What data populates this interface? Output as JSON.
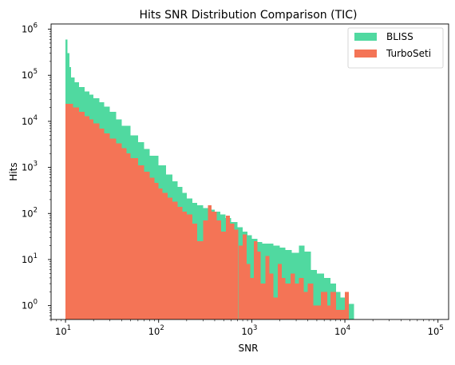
{
  "chart_data": {
    "type": "histogram",
    "title": "Hits SNR Distribution Comparison (TIC)",
    "xlabel": "SNR",
    "ylabel": "Hits",
    "xscale": "log",
    "yscale": "log",
    "xlim": [
      7,
      130000
    ],
    "ylim": [
      0.5,
      1300000
    ],
    "x_ticks": [
      {
        "value": 10,
        "base": "10",
        "exp": "1"
      },
      {
        "value": 100,
        "base": "10",
        "exp": "2"
      },
      {
        "value": 1000,
        "base": "10",
        "exp": "3"
      },
      {
        "value": 10000,
        "base": "10",
        "exp": "4"
      },
      {
        "value": 100000,
        "base": "10",
        "exp": "5"
      }
    ],
    "y_ticks": [
      {
        "value": 1,
        "base": "10",
        "exp": "0"
      },
      {
        "value": 10,
        "base": "10",
        "exp": "1"
      },
      {
        "value": 100,
        "base": "10",
        "exp": "2"
      },
      {
        "value": 1000,
        "base": "10",
        "exp": "3"
      },
      {
        "value": 10000,
        "base": "10",
        "exp": "4"
      },
      {
        "value": 100000,
        "base": "10",
        "exp": "5"
      },
      {
        "value": 1000000,
        "base": "10",
        "exp": "6"
      }
    ],
    "legend_position": "top-right",
    "grid": false,
    "series": [
      {
        "name": "BLISS",
        "color": "#50d9a0",
        "bins": [
          [
            10,
            600000
          ],
          [
            10.5,
            300000
          ],
          [
            11,
            150000
          ],
          [
            11.5,
            90000
          ],
          [
            12.5,
            70000
          ],
          [
            14,
            55000
          ],
          [
            16,
            45000
          ],
          [
            18,
            38000
          ],
          [
            20,
            32000
          ],
          [
            23,
            26000
          ],
          [
            26,
            21000
          ],
          [
            30,
            16000
          ],
          [
            35,
            11000
          ],
          [
            40,
            8000
          ],
          [
            50,
            5000
          ],
          [
            60,
            3500
          ],
          [
            70,
            2500
          ],
          [
            80,
            1800
          ],
          [
            100,
            1100
          ],
          [
            120,
            700
          ],
          [
            140,
            500
          ],
          [
            160,
            380
          ],
          [
            180,
            280
          ],
          [
            200,
            210
          ],
          [
            230,
            170
          ],
          [
            260,
            150
          ],
          [
            300,
            130
          ],
          [
            340,
            120
          ],
          [
            400,
            110
          ],
          [
            460,
            95
          ],
          [
            520,
            80
          ],
          [
            600,
            65
          ],
          [
            700,
            50
          ],
          [
            800,
            40
          ],
          [
            900,
            34
          ],
          [
            1000,
            28
          ],
          [
            1150,
            24
          ],
          [
            1300,
            22
          ],
          [
            1500,
            22
          ],
          [
            1700,
            20
          ],
          [
            2000,
            18
          ],
          [
            2300,
            16
          ],
          [
            2700,
            14
          ],
          [
            3200,
            20
          ],
          [
            3700,
            15
          ],
          [
            4300,
            6
          ],
          [
            5000,
            5
          ],
          [
            6000,
            4
          ],
          [
            7000,
            3
          ],
          [
            8000,
            2
          ],
          [
            9000,
            1.5
          ],
          [
            10000,
            1.1
          ],
          [
            11000,
            1.1
          ],
          [
            12500,
            0
          ]
        ]
      },
      {
        "name": "TurboSeti",
        "color": "#f47456",
        "bins": [
          [
            10,
            24000
          ],
          [
            12,
            20000
          ],
          [
            14,
            16000
          ],
          [
            16,
            13000
          ],
          [
            18,
            11000
          ],
          [
            20,
            9000
          ],
          [
            23,
            7000
          ],
          [
            26,
            5500
          ],
          [
            30,
            4200
          ],
          [
            35,
            3300
          ],
          [
            40,
            2600
          ],
          [
            45,
            2000
          ],
          [
            50,
            1600
          ],
          [
            60,
            1100
          ],
          [
            70,
            800
          ],
          [
            80,
            600
          ],
          [
            90,
            460
          ],
          [
            100,
            350
          ],
          [
            110,
            280
          ],
          [
            125,
            220
          ],
          [
            140,
            180
          ],
          [
            160,
            140
          ],
          [
            180,
            110
          ],
          [
            200,
            95
          ],
          [
            230,
            60
          ],
          [
            260,
            25
          ],
          [
            300,
            70
          ],
          [
            340,
            150
          ],
          [
            370,
            110
          ],
          [
            420,
            70
          ],
          [
            470,
            40
          ],
          [
            530,
            90
          ],
          [
            580,
            60
          ],
          [
            650,
            45
          ],
          [
            720,
            20
          ],
          [
            800,
            35
          ],
          [
            880,
            8
          ],
          [
            960,
            4
          ],
          [
            1050,
            25
          ],
          [
            1150,
            15
          ],
          [
            1250,
            3
          ],
          [
            1400,
            12
          ],
          [
            1550,
            5
          ],
          [
            1700,
            1.5
          ],
          [
            1900,
            8
          ],
          [
            2100,
            4
          ],
          [
            2300,
            3
          ],
          [
            2600,
            5
          ],
          [
            2900,
            3
          ],
          [
            3200,
            4
          ],
          [
            3600,
            2
          ],
          [
            4000,
            3
          ],
          [
            4600,
            1
          ],
          [
            5500,
            2
          ],
          [
            6500,
            1
          ],
          [
            7000,
            2
          ],
          [
            8000,
            0.8
          ],
          [
            10000,
            2
          ],
          [
            11000,
            0
          ]
        ]
      }
    ]
  }
}
